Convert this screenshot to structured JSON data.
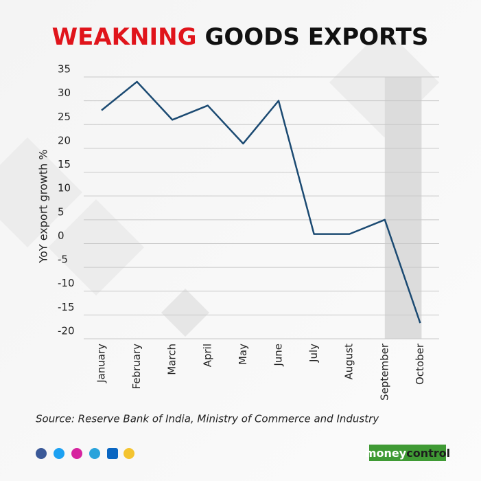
{
  "chart_data": {
    "type": "line",
    "title_parts": [
      "WEAKNING",
      "GOODS EXPORTS"
    ],
    "title_colors": [
      "#e0141b",
      "#111111"
    ],
    "y_label": "YoY export growth %",
    "categories": [
      "January",
      "February",
      "March",
      "April",
      "May",
      "June",
      "July",
      "August",
      "September",
      "October"
    ],
    "values": [
      28,
      34,
      26,
      29,
      21,
      30,
      2,
      2,
      5,
      -16.7
    ],
    "color": "#1b4a72",
    "ylim": [
      -20,
      35
    ],
    "yticks": [
      35,
      30,
      25,
      20,
      15,
      10,
      5,
      0,
      -5,
      -10,
      -15,
      -20
    ],
    "grid": true,
    "shaded_categories": [
      "September",
      "October"
    ],
    "source": "Source: Reserve Bank of India, Ministry of Commerce and Industry",
    "logo": [
      "money",
      "control"
    ]
  }
}
